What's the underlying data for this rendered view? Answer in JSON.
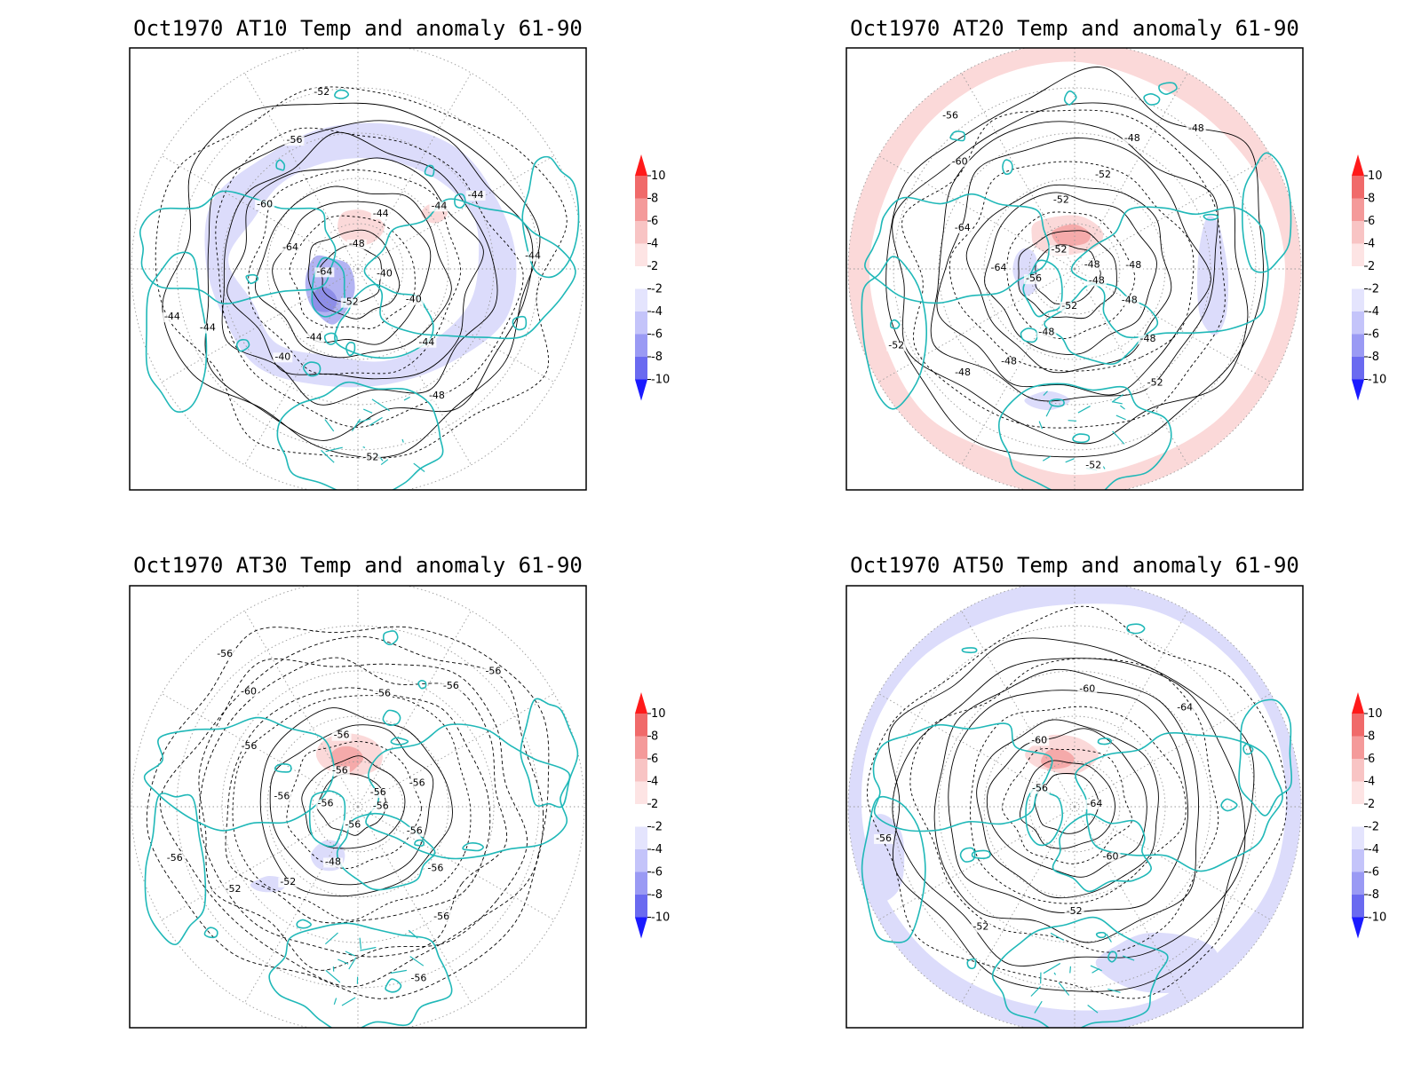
{
  "colors": {
    "coast": "#20b8b8",
    "contour": "#000000",
    "grid": "#9a9a9a",
    "frame": "#000000"
  },
  "colorbar": {
    "labels": [
      "10",
      "8",
      "6",
      "4",
      "2",
      "-2",
      "-4",
      "-6",
      "-8",
      "-10"
    ],
    "colors": [
      "#ff1a1a",
      "#f06a6a",
      "#f49a9a",
      "#f8c4c4",
      "#fde4e4",
      "#ffffff",
      "#e4e4fd",
      "#c4c4fa",
      "#9a9af4",
      "#6a6af0",
      "#1a1aff"
    ]
  },
  "panels": [
    {
      "title": "Oct1970 AT10 Temp and anomaly 61-90",
      "contour_labels": [
        "-40",
        "-40",
        "-44",
        "-48",
        "-52",
        "-52",
        "-44",
        "-40",
        "-44",
        "-44",
        "-64",
        "-64",
        "-60",
        "-56",
        "-52",
        "-48",
        "-44",
        "-44",
        "-44",
        "-44"
      ],
      "anomaly_ring": "neg"
    },
    {
      "title": "Oct1970 AT20 Temp and anomaly 61-90",
      "contour_labels": [
        "-48",
        "-48",
        "-48",
        "-52",
        "-52",
        "-52",
        "-48",
        "-48",
        "-48",
        "-52",
        "-56",
        "-64",
        "-64",
        "-60",
        "-56",
        "-52",
        "-52",
        "-52",
        "-48",
        "-48",
        "-48",
        "-48"
      ],
      "anomaly_ring": "pos"
    },
    {
      "title": "Oct1970 AT30 Temp and anomaly 61-90",
      "contour_labels": [
        "-56",
        "-56",
        "-56",
        "-56",
        "-56",
        "-56",
        "-48",
        "-52",
        "-52",
        "-56",
        "-56",
        "-56",
        "-56",
        "-60",
        "-56",
        "-56",
        "-56",
        "-56",
        "-56",
        "-56",
        "-56",
        "-56"
      ],
      "anomaly_ring": "none"
    },
    {
      "title": "Oct1970 AT50 Temp and anomaly 61-90",
      "contour_labels": [
        "-64",
        "-60",
        "-52",
        "-52",
        "-56",
        "-56",
        "-60",
        "-60",
        "-64"
      ],
      "anomaly_ring": "neg"
    }
  ]
}
